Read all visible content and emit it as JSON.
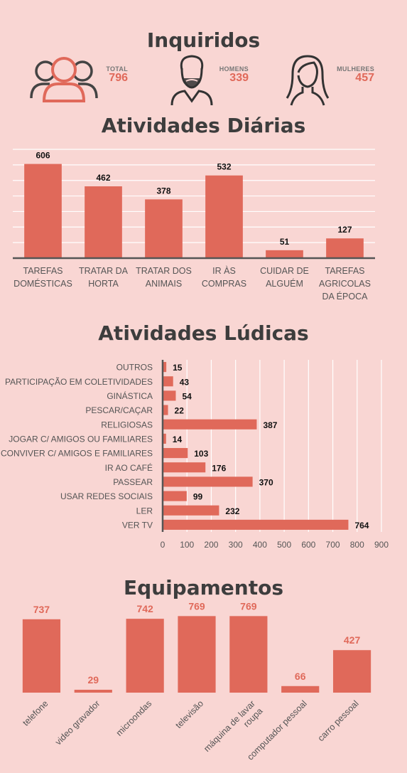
{
  "inquiridos": {
    "title": "Inquiridos",
    "stats": [
      {
        "label": "TOTAL",
        "value": "796",
        "icon": "group-icon"
      },
      {
        "label": "HOMENS",
        "value": "339",
        "icon": "man-icon"
      },
      {
        "label": "MULHERES",
        "value": "457",
        "icon": "woman-icon"
      }
    ]
  },
  "colors": {
    "bar": "#e0695a",
    "background": "#f9d6d3",
    "axis": "#555555",
    "grid": "#ffffff"
  },
  "chart_data": [
    {
      "type": "bar",
      "title": "Atividades Diárias",
      "categories": [
        [
          "TAREFAS",
          "DOMÉSTICAS"
        ],
        [
          "TRATAR DA",
          "HORTA"
        ],
        [
          "TRATAR DOS",
          "ANIMAIS"
        ],
        [
          "IR ÀS",
          "COMPRAS"
        ],
        [
          "CUIDAR DE",
          "ALGUÉM"
        ],
        [
          "TAREFAS",
          "AGRICOLAS",
          "DA ÉPOCA"
        ]
      ],
      "values": [
        606,
        462,
        378,
        532,
        51,
        127
      ],
      "ylim": [
        0,
        700
      ],
      "grid": true
    },
    {
      "type": "bar",
      "orientation": "horizontal",
      "title": "Atividades Lúdicas",
      "categories": [
        "OUTROS",
        "PARTICIPAÇÃO EM COLETIVIDADES",
        "GINÁSTICA",
        "PESCAR/CAÇAR",
        "RELIGIOSAS",
        "JOGAR C/ AMIGOS OU FAMILIARES",
        "CONVIVER C/ AMIGOS E FAMILIARES",
        "IR AO CAFÉ",
        "PASSEAR",
        "USAR REDES SOCIAIS",
        "LER",
        "VER TV"
      ],
      "values": [
        15,
        43,
        54,
        22,
        387,
        14,
        103,
        176,
        370,
        99,
        232,
        764
      ],
      "xlim": [
        0,
        900
      ],
      "xticks": [
        0,
        100,
        200,
        300,
        400,
        500,
        600,
        700,
        800,
        900
      ],
      "grid": true
    },
    {
      "type": "bar",
      "title": "Equipamentos",
      "categories": [
        [
          "telefone"
        ],
        [
          "video gravador"
        ],
        [
          "microondas"
        ],
        [
          "televisão"
        ],
        [
          "máquina de lavar",
          "roupa"
        ],
        [
          "computador pessoal"
        ],
        [
          "carro pessoal"
        ]
      ],
      "values": [
        737,
        29,
        742,
        769,
        769,
        66,
        427
      ],
      "ylim": [
        0,
        800
      ]
    }
  ]
}
